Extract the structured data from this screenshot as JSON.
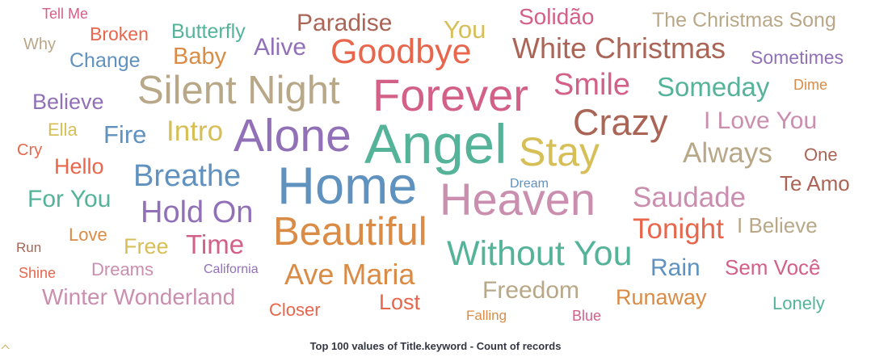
{
  "chart_data": {
    "type": "tagcloud",
    "title": "Top 100 values of Title.keyword - Count of records",
    "words": [
      {
        "text": "Tell Me",
        "color": "#d36086"
      },
      {
        "text": "Broken",
        "color": "#e7664c"
      },
      {
        "text": "Butterfly",
        "color": "#54b399"
      },
      {
        "text": "Paradise",
        "color": "#aa6556"
      },
      {
        "text": "You",
        "color": "#d6bf57"
      },
      {
        "text": "Solidão",
        "color": "#d36086"
      },
      {
        "text": "The Christmas Song",
        "color": "#b9a888"
      },
      {
        "text": "Why",
        "color": "#b9a888"
      },
      {
        "text": "Change",
        "color": "#6092c0"
      },
      {
        "text": "Baby",
        "color": "#da8b45"
      },
      {
        "text": "Alive",
        "color": "#9170b8"
      },
      {
        "text": "Goodbye",
        "color": "#e7664c"
      },
      {
        "text": "White Christmas",
        "color": "#aa6556"
      },
      {
        "text": "Sometimes",
        "color": "#9170b8"
      },
      {
        "text": "Believe",
        "color": "#9170b8"
      },
      {
        "text": "Silent Night",
        "color": "#b9a888"
      },
      {
        "text": "Forever",
        "color": "#d36086"
      },
      {
        "text": "Smile",
        "color": "#d36086"
      },
      {
        "text": "Someday",
        "color": "#54b399"
      },
      {
        "text": "Dime",
        "color": "#da8b45"
      },
      {
        "text": "Ella",
        "color": "#d6bf57"
      },
      {
        "text": "Fire",
        "color": "#6092c0"
      },
      {
        "text": "Intro",
        "color": "#d6bf57"
      },
      {
        "text": "Crazy",
        "color": "#aa6556"
      },
      {
        "text": "I Love You",
        "color": "#ca8eae"
      },
      {
        "text": "Cry",
        "color": "#e7664c"
      },
      {
        "text": "Alone",
        "color": "#9170b8"
      },
      {
        "text": "Angel",
        "color": "#54b399"
      },
      {
        "text": "Stay",
        "color": "#d6bf57"
      },
      {
        "text": "Always",
        "color": "#b9a888"
      },
      {
        "text": "One",
        "color": "#aa6556"
      },
      {
        "text": "Hello",
        "color": "#e7664c"
      },
      {
        "text": "Breathe",
        "color": "#6092c0"
      },
      {
        "text": "Dream",
        "color": "#6092c0"
      },
      {
        "text": "Te Amo",
        "color": "#aa6556"
      },
      {
        "text": "For You",
        "color": "#54b399"
      },
      {
        "text": "Home",
        "color": "#6092c0"
      },
      {
        "text": "Heaven",
        "color": "#ca8eae"
      },
      {
        "text": "Saudade",
        "color": "#ca8eae"
      },
      {
        "text": "Hold On",
        "color": "#9170b8"
      },
      {
        "text": "Tonight",
        "color": "#e7664c"
      },
      {
        "text": "I Believe",
        "color": "#b9a888"
      },
      {
        "text": "Love",
        "color": "#da8b45"
      },
      {
        "text": "Beautiful",
        "color": "#da8b45"
      },
      {
        "text": "Run",
        "color": "#aa6556"
      },
      {
        "text": "Free",
        "color": "#d6bf57"
      },
      {
        "text": "Time",
        "color": "#d36086"
      },
      {
        "text": "Without You",
        "color": "#54b399"
      },
      {
        "text": "Shine",
        "color": "#e7664c"
      },
      {
        "text": "Dreams",
        "color": "#ca8eae"
      },
      {
        "text": "California",
        "color": "#9170b8"
      },
      {
        "text": "Rain",
        "color": "#6092c0"
      },
      {
        "text": "Sem Você",
        "color": "#d36086"
      },
      {
        "text": "Ave Maria",
        "color": "#da8b45"
      },
      {
        "text": "Freedom",
        "color": "#b9a888"
      },
      {
        "text": "Winter Wonderland",
        "color": "#ca8eae"
      },
      {
        "text": "Runaway",
        "color": "#da8b45"
      },
      {
        "text": "Lonely",
        "color": "#54b399"
      },
      {
        "text": "Closer",
        "color": "#e7664c"
      },
      {
        "text": "Lost",
        "color": "#e7664c"
      },
      {
        "text": "Falling",
        "color": "#da8b45"
      },
      {
        "text": "Blue",
        "color": "#d36086"
      }
    ]
  }
}
